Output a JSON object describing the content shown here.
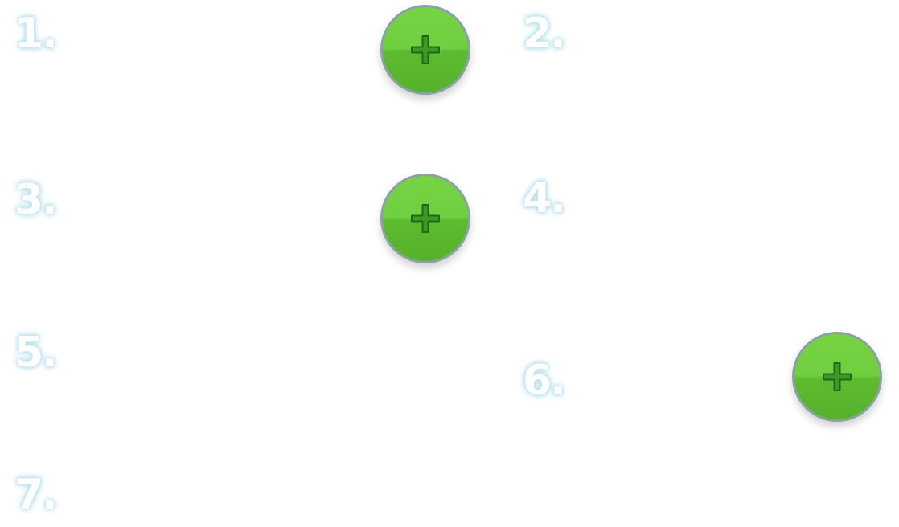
{
  "labels": {
    "n1": "1.",
    "n2": "2.",
    "n3": "3.",
    "n4": "4.",
    "n5": "5.",
    "n6": "6.",
    "n7": "7."
  },
  "buttons": {
    "icon": "plus-icon",
    "fill_color": "#6ccb3b",
    "border_color": "#8aa2a6"
  }
}
